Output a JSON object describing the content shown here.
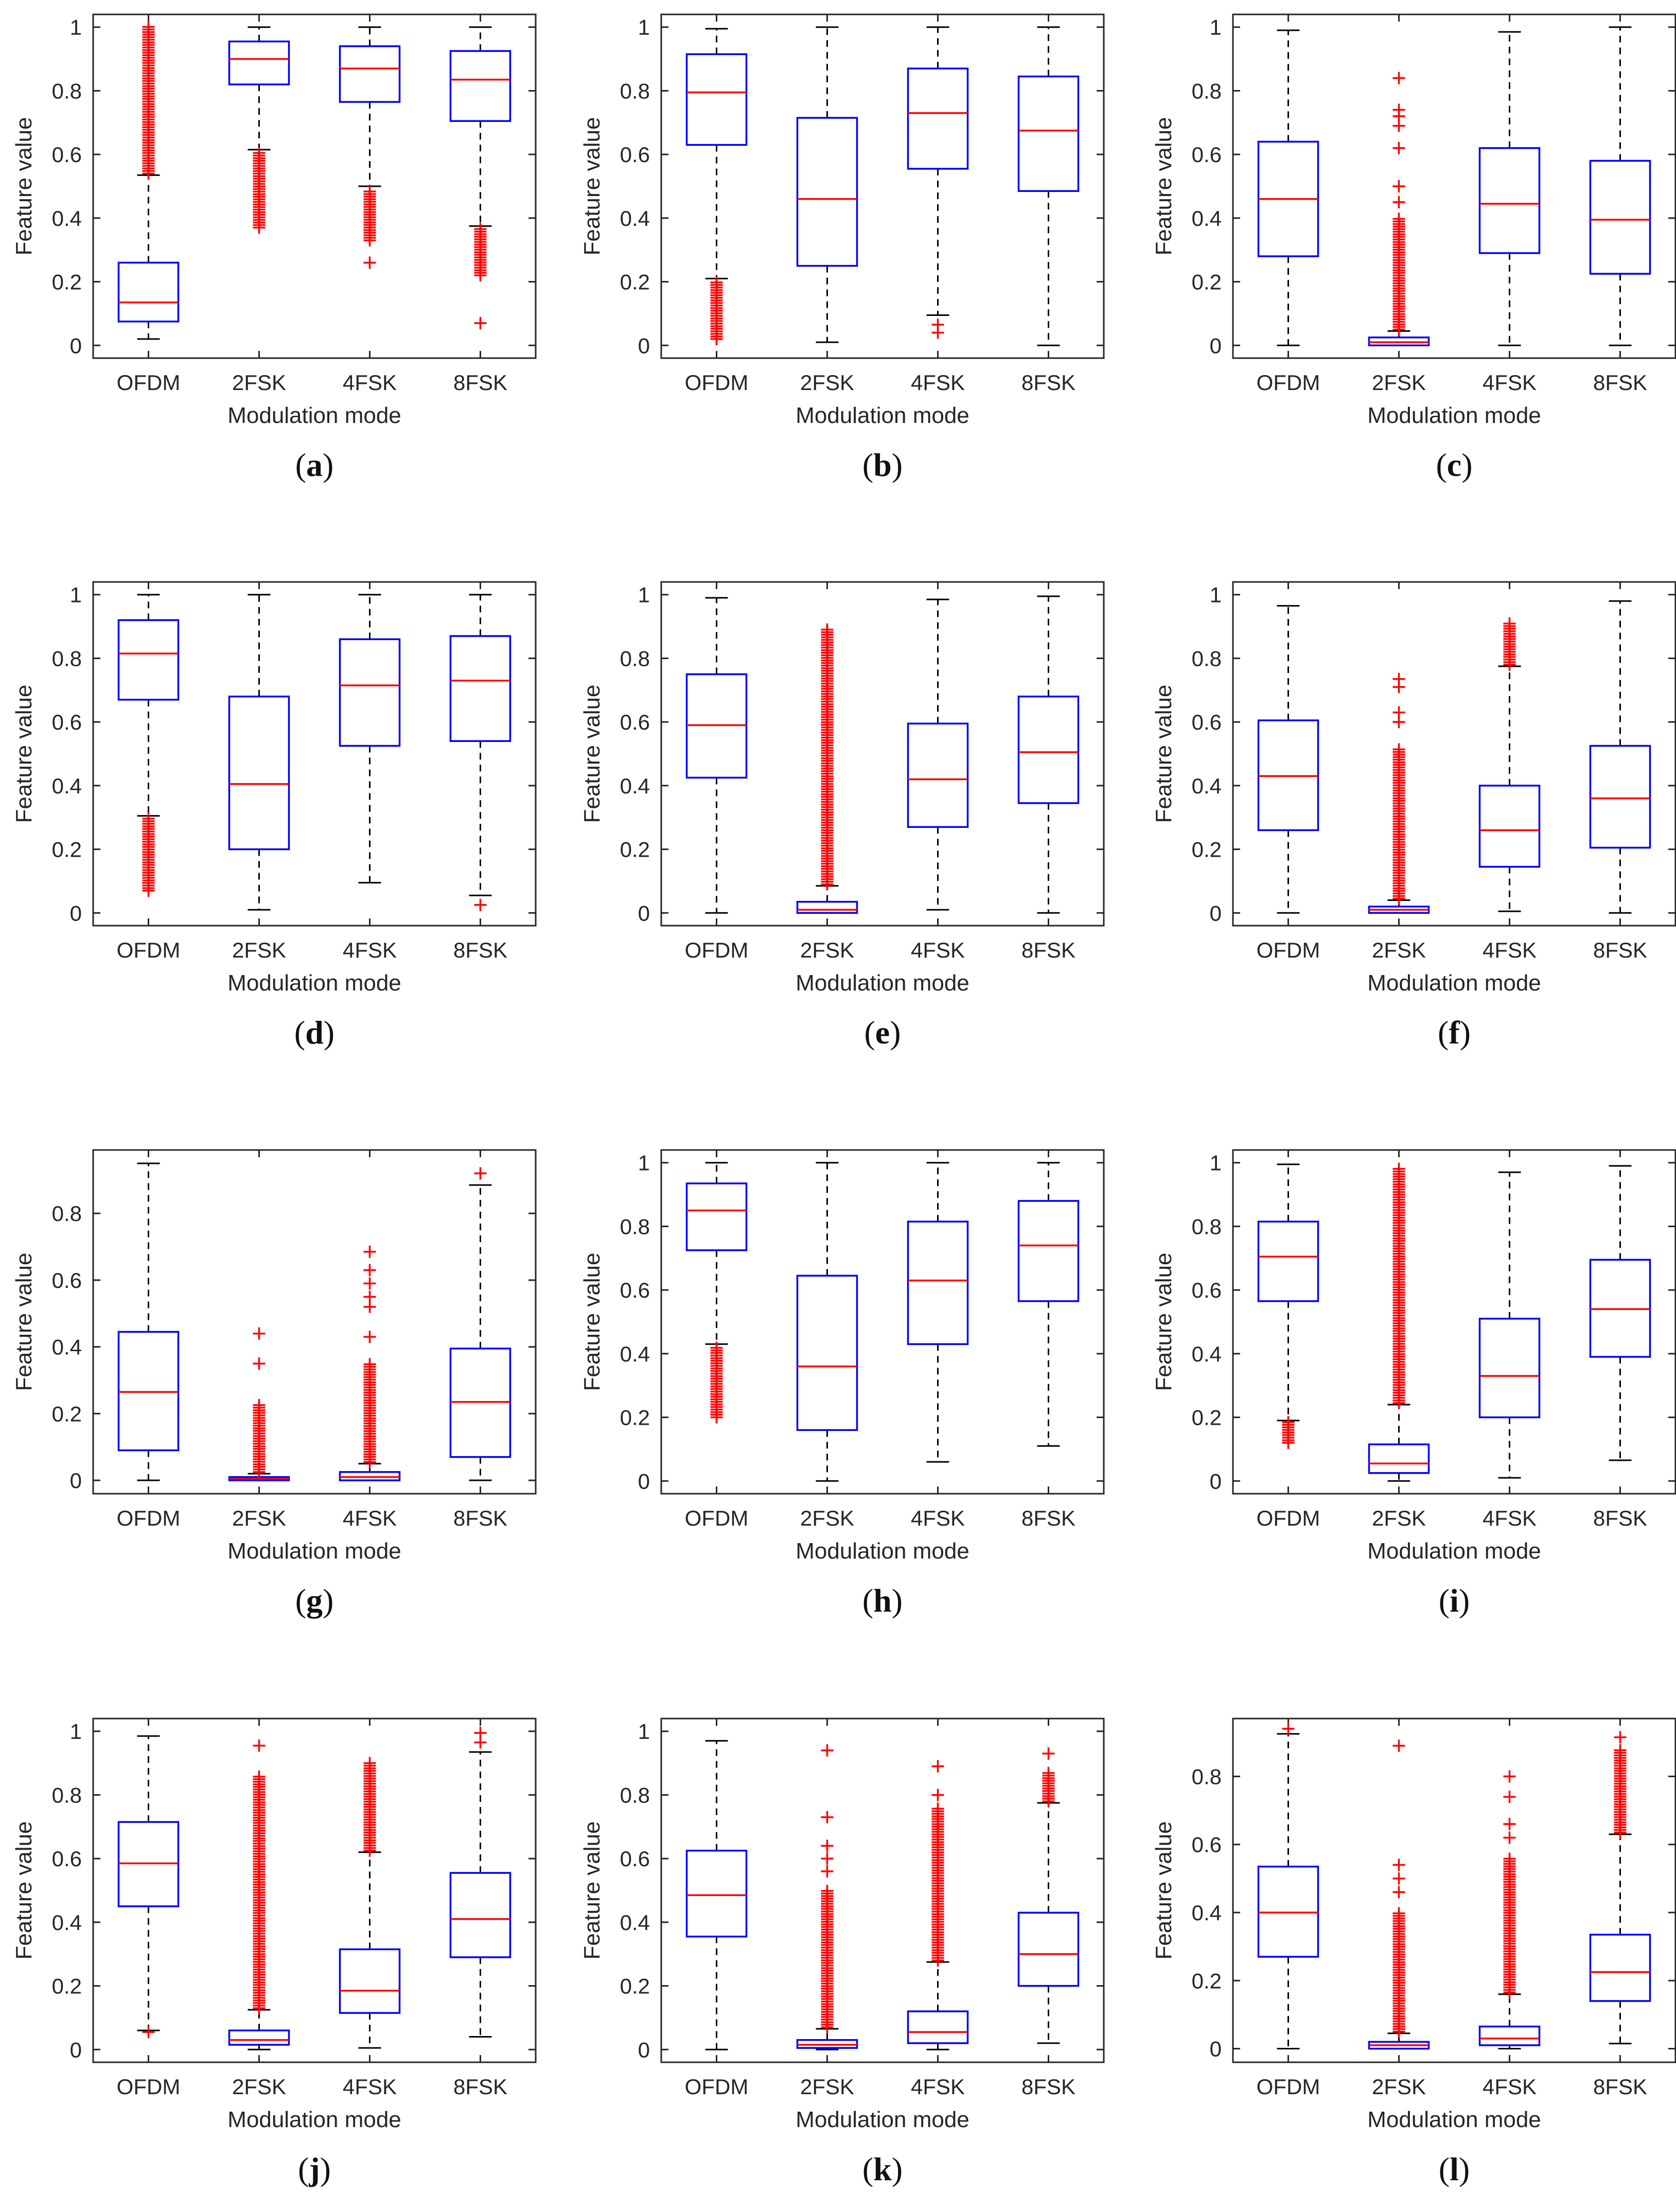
{
  "figure": {
    "box_color": "#0000ff",
    "median_color": "#ff0000",
    "outlier_color": "#ff0000",
    "axes_color": "#262626",
    "whisker_color": "#000000"
  },
  "chart_data": [
    {
      "label": "a",
      "type": "boxplot",
      "xlabel": "Modulation mode",
      "ylabel": "Feature value",
      "categories": [
        "OFDM",
        "2FSK",
        "4FSK",
        "8FSK"
      ],
      "ylim": [
        -0.04,
        1.04
      ],
      "yticks": [
        0,
        0.2,
        0.4,
        0.6,
        0.8,
        1
      ],
      "tick_labels": [
        "0",
        "0.2",
        "0.4",
        "0.6",
        "0.8",
        "1"
      ],
      "boxes": [
        {
          "lw": 0.02,
          "q1": 0.075,
          "med": 0.135,
          "q3": 0.26,
          "uw": 0.535,
          "out": [
            [
              0.54,
              1.0,
              "dense"
            ]
          ]
        },
        {
          "lw": 0.615,
          "q1": 0.82,
          "med": 0.9,
          "q3": 0.955,
          "uw": 1.0,
          "out": [
            [
              0.37,
              0.61,
              "dense"
            ]
          ]
        },
        {
          "lw": 0.5,
          "q1": 0.765,
          "med": 0.87,
          "q3": 0.94,
          "uw": 1.0,
          "out": [
            [
              0.33,
              0.49,
              "dense"
            ],
            0.26
          ]
        },
        {
          "lw": 0.375,
          "q1": 0.705,
          "med": 0.835,
          "q3": 0.925,
          "uw": 1.0,
          "out": [
            [
              0.22,
              0.37,
              "dense"
            ],
            0.07
          ]
        }
      ]
    },
    {
      "label": "b",
      "type": "boxplot",
      "xlabel": "Modulation mode",
      "ylabel": "Feature value",
      "categories": [
        "OFDM",
        "2FSK",
        "4FSK",
        "8FSK"
      ],
      "ylim": [
        -0.04,
        1.04
      ],
      "yticks": [
        0,
        0.2,
        0.4,
        0.6,
        0.8,
        1
      ],
      "tick_labels": [
        "0",
        "0.2",
        "0.4",
        "0.6",
        "0.8",
        "1"
      ],
      "boxes": [
        {
          "lw": 0.21,
          "q1": 0.63,
          "med": 0.795,
          "q3": 0.915,
          "uw": 0.995,
          "out": [
            [
              0.02,
              0.205,
              "dense"
            ]
          ]
        },
        {
          "lw": 0.01,
          "q1": 0.25,
          "med": 0.46,
          "q3": 0.715,
          "uw": 1.0,
          "out": []
        },
        {
          "lw": 0.095,
          "q1": 0.555,
          "med": 0.73,
          "q3": 0.87,
          "uw": 1.0,
          "out": [
            0.065,
            0.04
          ]
        },
        {
          "lw": 0.0,
          "q1": 0.485,
          "med": 0.675,
          "q3": 0.845,
          "uw": 1.0,
          "out": []
        }
      ]
    },
    {
      "label": "c",
      "type": "boxplot",
      "xlabel": "Modulation mode",
      "ylabel": "Feature value",
      "categories": [
        "OFDM",
        "2FSK",
        "4FSK",
        "8FSK"
      ],
      "ylim": [
        -0.04,
        1.04
      ],
      "yticks": [
        0,
        0.2,
        0.4,
        0.6,
        0.8,
        1
      ],
      "tick_labels": [
        "0",
        "0.2",
        "0.4",
        "0.6",
        "0.8",
        "1"
      ],
      "boxes": [
        {
          "lw": 0.0,
          "q1": 0.28,
          "med": 0.46,
          "q3": 0.64,
          "uw": 0.99,
          "out": []
        },
        {
          "lw": 0.0,
          "q1": 0.0,
          "med": 0.01,
          "q3": 0.025,
          "uw": 0.045,
          "out": [
            [
              0.05,
              0.4,
              "dense"
            ],
            0.45,
            0.5,
            0.62,
            0.69,
            0.72,
            0.74,
            0.84
          ]
        },
        {
          "lw": 0.0,
          "q1": 0.29,
          "med": 0.445,
          "q3": 0.62,
          "uw": 0.985,
          "out": []
        },
        {
          "lw": 0.0,
          "q1": 0.225,
          "med": 0.395,
          "q3": 0.58,
          "uw": 1.0,
          "out": []
        }
      ]
    },
    {
      "label": "d",
      "type": "boxplot",
      "xlabel": "Modulation mode",
      "ylabel": "Feature value",
      "categories": [
        "OFDM",
        "2FSK",
        "4FSK",
        "8FSK"
      ],
      "ylim": [
        -0.04,
        1.04
      ],
      "yticks": [
        0,
        0.2,
        0.4,
        0.6,
        0.8,
        1
      ],
      "tick_labels": [
        "0",
        "0.2",
        "0.4",
        "0.6",
        "0.8",
        "1"
      ],
      "boxes": [
        {
          "lw": 0.305,
          "q1": 0.67,
          "med": 0.815,
          "q3": 0.92,
          "uw": 1.0,
          "out": [
            [
              0.07,
              0.3,
              "dense"
            ]
          ]
        },
        {
          "lw": 0.01,
          "q1": 0.2,
          "med": 0.405,
          "q3": 0.68,
          "uw": 1.0,
          "out": []
        },
        {
          "lw": 0.095,
          "q1": 0.525,
          "med": 0.715,
          "q3": 0.86,
          "uw": 1.0,
          "out": []
        },
        {
          "lw": 0.055,
          "q1": 0.54,
          "med": 0.73,
          "q3": 0.87,
          "uw": 1.0,
          "out": [
            0.025
          ]
        }
      ]
    },
    {
      "label": "e",
      "type": "boxplot",
      "xlabel": "Modulation mode",
      "ylabel": "Feature value",
      "categories": [
        "OFDM",
        "2FSK",
        "4FSK",
        "8FSK"
      ],
      "ylim": [
        -0.04,
        1.04
      ],
      "yticks": [
        0,
        0.2,
        0.4,
        0.6,
        0.8,
        1
      ],
      "tick_labels": [
        "0",
        "0.2",
        "0.4",
        "0.6",
        "0.8",
        "1"
      ],
      "boxes": [
        {
          "lw": 0.0,
          "q1": 0.425,
          "med": 0.59,
          "q3": 0.75,
          "uw": 0.99,
          "out": []
        },
        {
          "lw": 0.0,
          "q1": 0.0,
          "med": 0.01,
          "q3": 0.035,
          "uw": 0.085,
          "out": [
            [
              0.09,
              0.89,
              "dense"
            ]
          ]
        },
        {
          "lw": 0.01,
          "q1": 0.27,
          "med": 0.42,
          "q3": 0.595,
          "uw": 0.985,
          "out": []
        },
        {
          "lw": 0.0,
          "q1": 0.345,
          "med": 0.505,
          "q3": 0.68,
          "uw": 0.995,
          "out": []
        }
      ]
    },
    {
      "label": "f",
      "type": "boxplot",
      "xlabel": "Modulation mode",
      "ylabel": "Feature value",
      "categories": [
        "OFDM",
        "2FSK",
        "4FSK",
        "8FSK"
      ],
      "ylim": [
        -0.04,
        1.04
      ],
      "yticks": [
        0,
        0.2,
        0.4,
        0.6,
        0.8,
        1
      ],
      "tick_labels": [
        "0",
        "0.2",
        "0.4",
        "0.6",
        "0.8",
        "1"
      ],
      "boxes": [
        {
          "lw": 0.0,
          "q1": 0.26,
          "med": 0.43,
          "q3": 0.605,
          "uw": 0.965,
          "out": []
        },
        {
          "lw": 0.0,
          "q1": 0.0,
          "med": 0.01,
          "q3": 0.02,
          "uw": 0.04,
          "out": [
            [
              0.045,
              0.52,
              "dense"
            ],
            0.6,
            0.63,
            0.71,
            0.735
          ]
        },
        {
          "lw": 0.005,
          "q1": 0.145,
          "med": 0.26,
          "q3": 0.4,
          "uw": 0.775,
          "out": [
            [
              0.78,
              0.91,
              "dense"
            ]
          ]
        },
        {
          "lw": 0.0,
          "q1": 0.205,
          "med": 0.36,
          "q3": 0.525,
          "uw": 0.98,
          "out": []
        }
      ]
    },
    {
      "label": "g",
      "type": "boxplot",
      "xlabel": "Modulation mode",
      "ylabel": "Feature value",
      "categories": [
        "OFDM",
        "2FSK",
        "4FSK",
        "8FSK"
      ],
      "ylim": [
        -0.04,
        0.99
      ],
      "yticks": [
        0,
        0.2,
        0.4,
        0.6,
        0.8
      ],
      "tick_labels": [
        "0",
        "0.2",
        "0.4",
        "0.6",
        "0.8"
      ],
      "boxes": [
        {
          "lw": 0.0,
          "q1": 0.09,
          "med": 0.265,
          "q3": 0.445,
          "uw": 0.95,
          "out": []
        },
        {
          "lw": 0.0,
          "q1": 0.0,
          "med": 0.005,
          "q3": 0.01,
          "uw": 0.02,
          "out": [
            [
              0.025,
              0.23,
              "dense"
            ],
            0.35,
            0.44
          ]
        },
        {
          "lw": 0.0,
          "q1": 0.0,
          "med": 0.01,
          "q3": 0.025,
          "uw": 0.05,
          "out": [
            [
              0.055,
              0.35,
              "dense"
            ],
            0.43,
            0.52,
            0.55,
            0.59,
            0.63,
            0.685
          ]
        },
        {
          "lw": 0.0,
          "q1": 0.07,
          "med": 0.235,
          "q3": 0.395,
          "uw": 0.885,
          "out": [
            0.92
          ]
        }
      ]
    },
    {
      "label": "h",
      "type": "boxplot",
      "xlabel": "Modulation mode",
      "ylabel": "Feature value",
      "categories": [
        "OFDM",
        "2FSK",
        "4FSK",
        "8FSK"
      ],
      "ylim": [
        -0.04,
        1.04
      ],
      "yticks": [
        0,
        0.2,
        0.4,
        0.6,
        0.8,
        1
      ],
      "tick_labels": [
        "0",
        "0.2",
        "0.4",
        "0.6",
        "0.8",
        "1"
      ],
      "boxes": [
        {
          "lw": 0.43,
          "q1": 0.725,
          "med": 0.85,
          "q3": 0.935,
          "uw": 1.0,
          "out": [
            [
              0.2,
              0.42,
              "dense"
            ]
          ]
        },
        {
          "lw": 0.0,
          "q1": 0.16,
          "med": 0.36,
          "q3": 0.645,
          "uw": 1.0,
          "out": []
        },
        {
          "lw": 0.06,
          "q1": 0.43,
          "med": 0.63,
          "q3": 0.815,
          "uw": 1.0,
          "out": []
        },
        {
          "lw": 0.11,
          "q1": 0.565,
          "med": 0.74,
          "q3": 0.88,
          "uw": 1.0,
          "out": []
        }
      ]
    },
    {
      "label": "i",
      "type": "boxplot",
      "xlabel": "Modulation mode",
      "ylabel": "Feature value",
      "categories": [
        "OFDM",
        "2FSK",
        "4FSK",
        "8FSK"
      ],
      "ylim": [
        -0.04,
        1.04
      ],
      "yticks": [
        0,
        0.2,
        0.4,
        0.6,
        0.8,
        1
      ],
      "tick_labels": [
        "0",
        "0.2",
        "0.4",
        "0.6",
        "0.8",
        "1"
      ],
      "boxes": [
        {
          "lw": 0.19,
          "q1": 0.565,
          "med": 0.705,
          "q3": 0.815,
          "uw": 0.995,
          "out": [
            [
              0.12,
              0.185,
              "dense"
            ]
          ]
        },
        {
          "lw": 0.0,
          "q1": 0.025,
          "med": 0.055,
          "q3": 0.115,
          "uw": 0.24,
          "out": [
            [
              0.245,
              0.98,
              "dense"
            ]
          ]
        },
        {
          "lw": 0.01,
          "q1": 0.2,
          "med": 0.33,
          "q3": 0.51,
          "uw": 0.97,
          "out": []
        },
        {
          "lw": 0.065,
          "q1": 0.39,
          "med": 0.54,
          "q3": 0.695,
          "uw": 0.99,
          "out": []
        }
      ]
    },
    {
      "label": "j",
      "type": "boxplot",
      "xlabel": "Modulation mode",
      "ylabel": "Feature value",
      "categories": [
        "OFDM",
        "2FSK",
        "4FSK",
        "8FSK"
      ],
      "ylim": [
        -0.04,
        1.04
      ],
      "yticks": [
        0,
        0.2,
        0.4,
        0.6,
        0.8,
        1
      ],
      "tick_labels": [
        "0",
        "0.2",
        "0.4",
        "0.6",
        "0.8",
        "1"
      ],
      "boxes": [
        {
          "lw": 0.06,
          "q1": 0.45,
          "med": 0.585,
          "q3": 0.715,
          "uw": 0.985,
          "out": [
            0.055
          ]
        },
        {
          "lw": 0.0,
          "q1": 0.015,
          "med": 0.03,
          "q3": 0.06,
          "uw": 0.125,
          "out": [
            [
              0.13,
              0.86,
              "dense"
            ],
            0.955
          ]
        },
        {
          "lw": 0.005,
          "q1": 0.115,
          "med": 0.185,
          "q3": 0.315,
          "uw": 0.62,
          "out": [
            [
              0.625,
              0.9,
              "dense"
            ]
          ]
        },
        {
          "lw": 0.04,
          "q1": 0.29,
          "med": 0.41,
          "q3": 0.555,
          "uw": 0.935,
          "out": [
            0.965,
            0.995
          ]
        }
      ]
    },
    {
      "label": "k",
      "type": "boxplot",
      "xlabel": "Modulation mode",
      "ylabel": "Feature value",
      "categories": [
        "OFDM",
        "2FSK",
        "4FSK",
        "8FSK"
      ],
      "ylim": [
        -0.04,
        1.04
      ],
      "yticks": [
        0,
        0.2,
        0.4,
        0.6,
        0.8,
        1
      ],
      "tick_labels": [
        "0",
        "0.2",
        "0.4",
        "0.6",
        "0.8",
        "1"
      ],
      "boxes": [
        {
          "lw": 0.0,
          "q1": 0.355,
          "med": 0.485,
          "q3": 0.625,
          "uw": 0.97,
          "out": []
        },
        {
          "lw": 0.0,
          "q1": 0.005,
          "med": 0.015,
          "q3": 0.03,
          "uw": 0.065,
          "out": [
            [
              0.07,
              0.5,
              "dense"
            ],
            0.56,
            0.6,
            0.64,
            0.73,
            0.94
          ]
        },
        {
          "lw": 0.0,
          "q1": 0.02,
          "med": 0.055,
          "q3": 0.12,
          "uw": 0.275,
          "out": [
            [
              0.28,
              0.76,
              "dense"
            ],
            0.8,
            0.89
          ]
        },
        {
          "lw": 0.02,
          "q1": 0.2,
          "med": 0.3,
          "q3": 0.43,
          "uw": 0.775,
          "out": [
            [
              0.78,
              0.875,
              "dense"
            ],
            0.93
          ]
        }
      ]
    },
    {
      "label": "l",
      "type": "boxplot",
      "xlabel": "Modulation mode",
      "ylabel": "Feature value",
      "categories": [
        "OFDM",
        "2FSK",
        "4FSK",
        "8FSK"
      ],
      "ylim": [
        -0.04,
        0.97
      ],
      "yticks": [
        0,
        0.2,
        0.4,
        0.6,
        0.8
      ],
      "tick_labels": [
        "0",
        "0.2",
        "0.4",
        "0.6",
        "0.8"
      ],
      "boxes": [
        {
          "lw": 0.0,
          "q1": 0.27,
          "med": 0.4,
          "q3": 0.535,
          "uw": 0.925,
          "out": [
            0.94
          ]
        },
        {
          "lw": 0.0,
          "q1": 0.0,
          "med": 0.01,
          "q3": 0.02,
          "uw": 0.045,
          "out": [
            [
              0.05,
              0.4,
              "dense"
            ],
            0.46,
            0.5,
            0.54,
            0.89
          ]
        },
        {
          "lw": 0.0,
          "q1": 0.01,
          "med": 0.03,
          "q3": 0.065,
          "uw": 0.16,
          "out": [
            [
              0.165,
              0.56,
              "dense"
            ],
            0.62,
            0.66,
            0.74,
            0.8
          ]
        },
        {
          "lw": 0.015,
          "q1": 0.14,
          "med": 0.225,
          "q3": 0.335,
          "uw": 0.63,
          "out": [
            [
              0.635,
              0.88,
              "dense"
            ],
            0.915
          ]
        }
      ]
    }
  ]
}
